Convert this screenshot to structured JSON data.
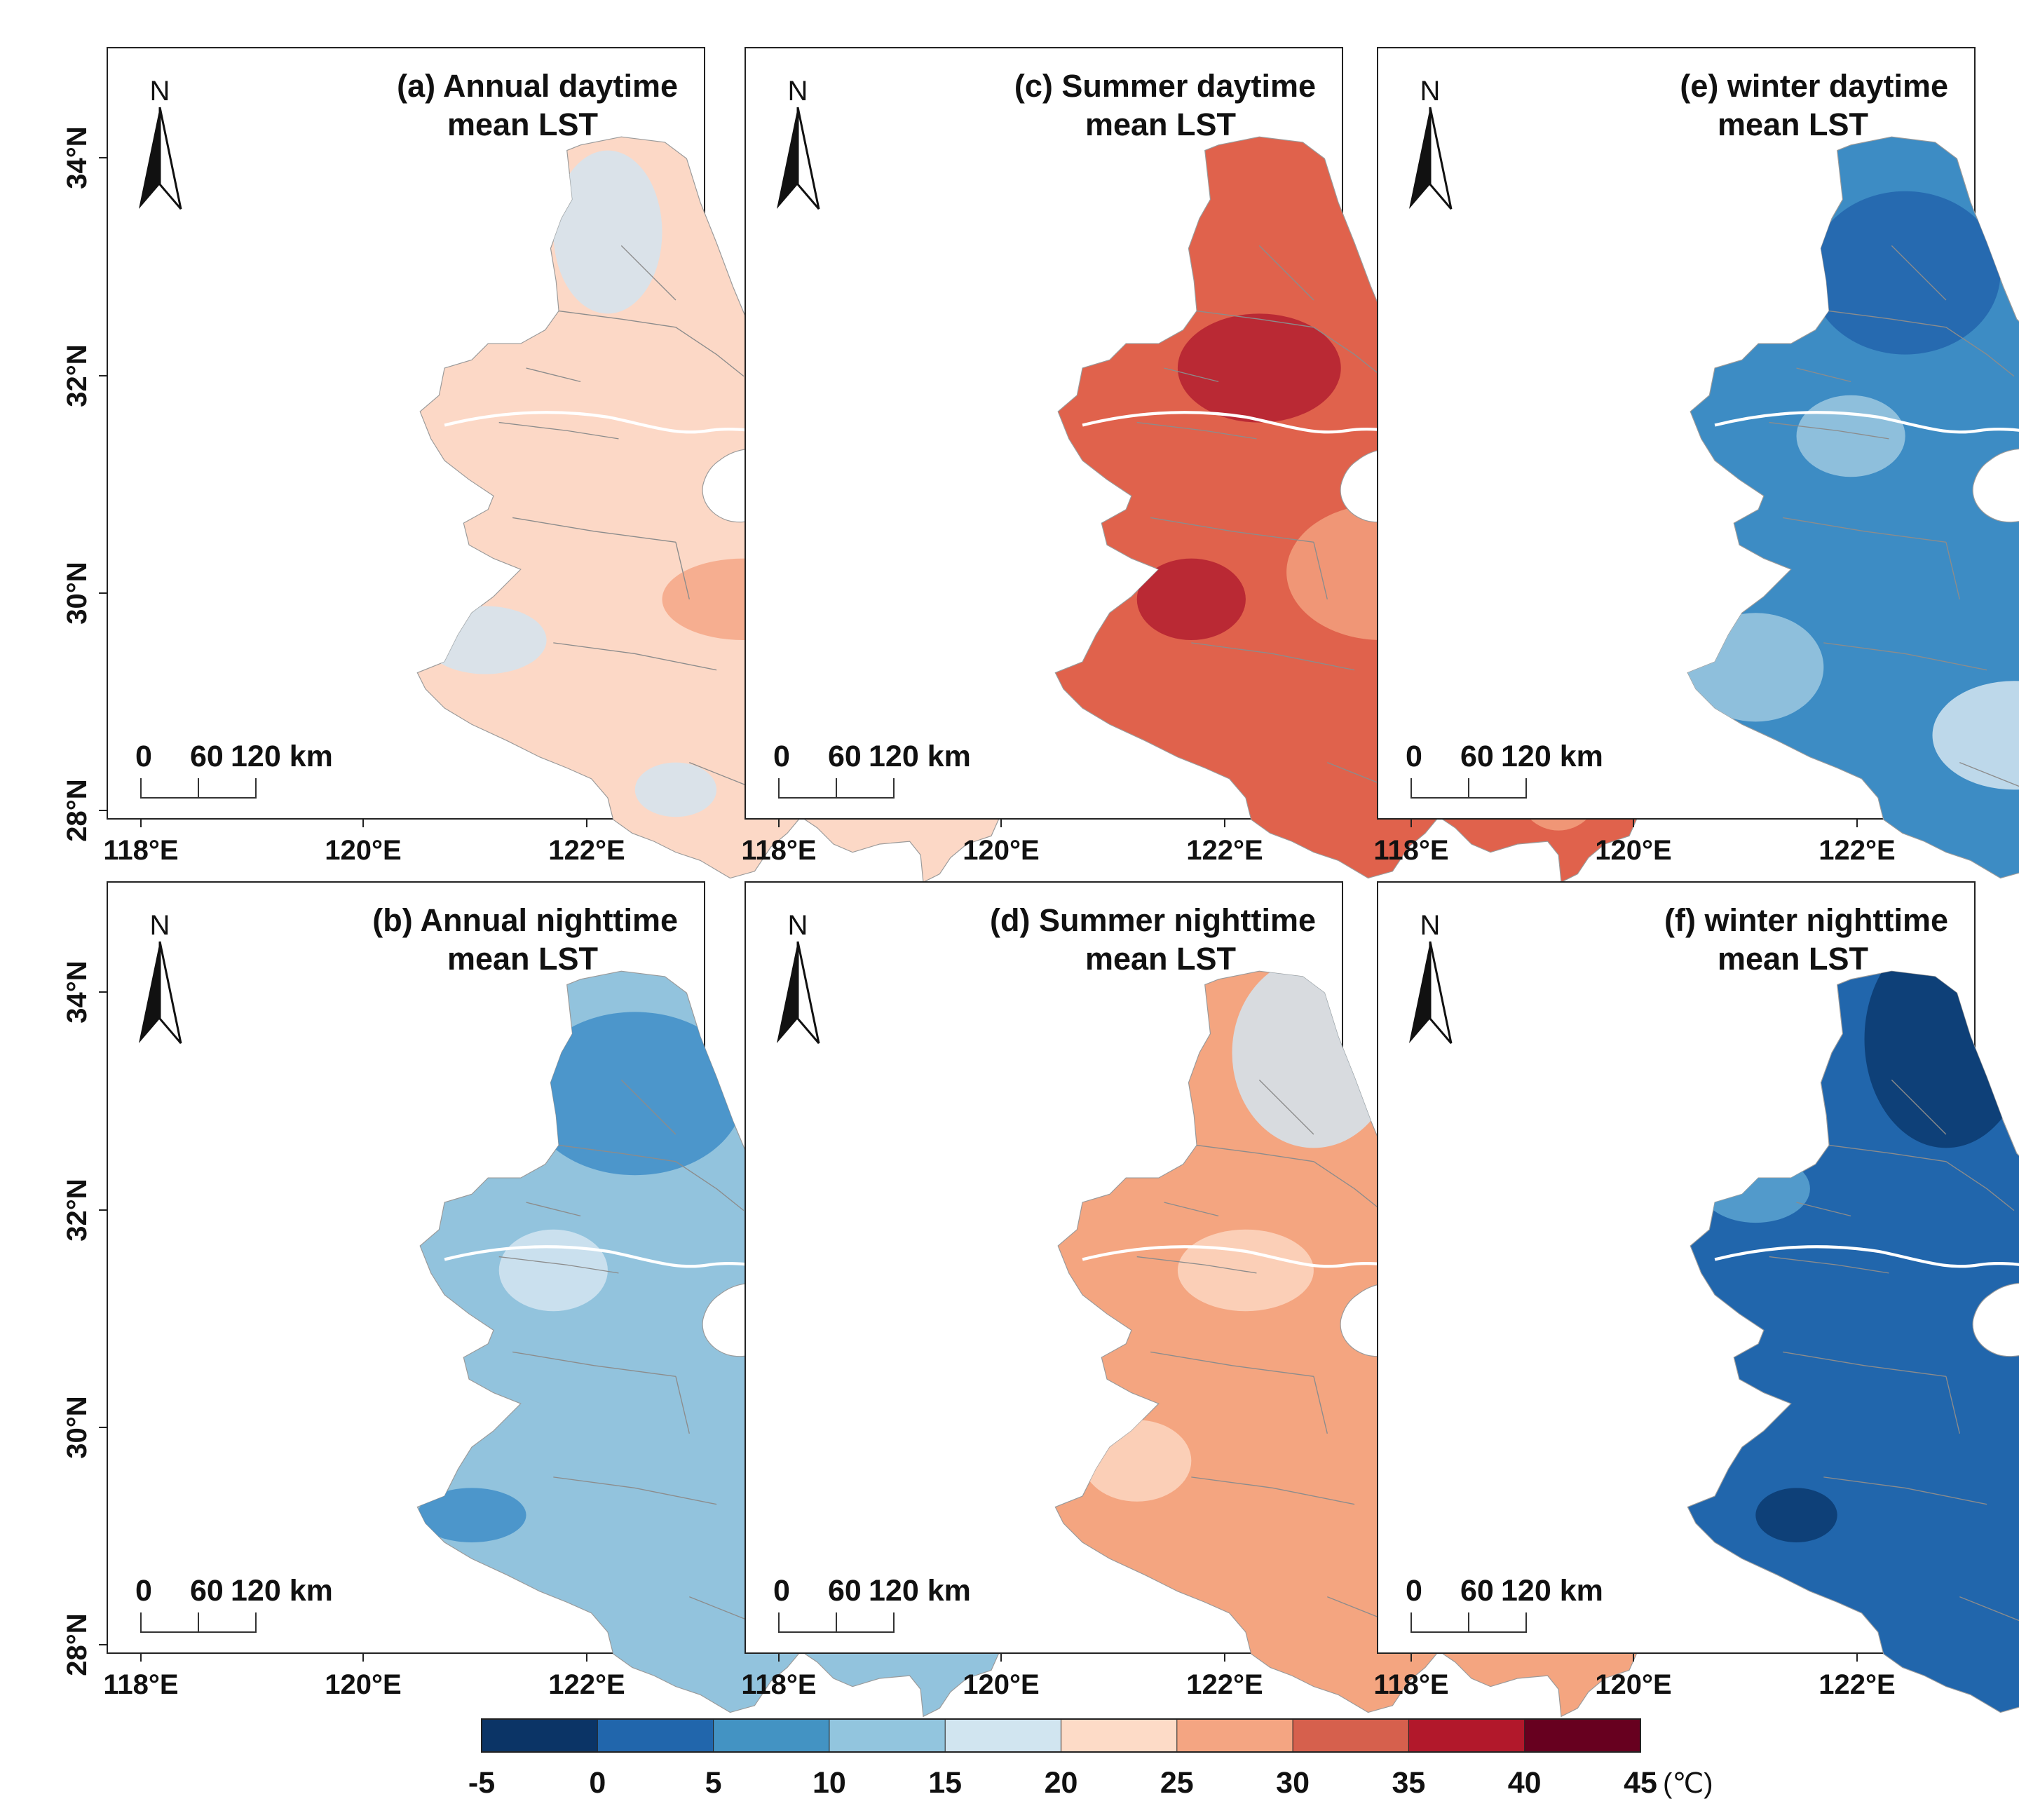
{
  "figure": {
    "lat_labels": [
      "34°N",
      "32°N",
      "30°N",
      "28°N"
    ],
    "lon_labels": [
      "118°E",
      "120°E",
      "122°E"
    ],
    "north_label": "N",
    "scale_labels": [
      "0",
      "60",
      "120 km"
    ],
    "panels": [
      {
        "title_line1": "(a) Annual daytime",
        "title_line2": "mean LST",
        "base_color": "#fcd8c6",
        "patch_colors": [
          "#d3e4ef",
          "#f4a786"
        ]
      },
      {
        "title_line1": "(c) Summer daytime",
        "title_line2": "mean LST",
        "base_color": "#e0624c",
        "patch_colors": [
          "#b32030",
          "#f2a07e",
          "#8a0f22"
        ]
      },
      {
        "title_line1": "(e) winter daytime",
        "title_line2": "mean LST",
        "base_color": "#3d8cc4",
        "patch_colors": [
          "#2264ad",
          "#9cc8e0",
          "#d3e5f1"
        ]
      },
      {
        "title_line1": "(b) Annual nighttime",
        "title_line2": "mean LST",
        "base_color": "#92c3dd",
        "patch_colors": [
          "#3f8ec8",
          "#d3e5f1"
        ]
      },
      {
        "title_line1": "(d) Summer nighttime",
        "title_line2": "mean LST",
        "base_color": "#f4a580",
        "patch_colors": [
          "#d2e4f0",
          "#fcd6c1"
        ]
      },
      {
        "title_line1": "(f) winter nighttime",
        "title_line2": "mean LST",
        "base_color": "#2166ac",
        "patch_colors": [
          "#0a3a6e",
          "#5ba3d0"
        ]
      }
    ]
  },
  "legend": {
    "unit": "(℃)",
    "tick_labels": [
      "-5",
      "0",
      "5",
      "10",
      "15",
      "20",
      "25",
      "30",
      "35",
      "40",
      "45"
    ],
    "colors": [
      "#0b3466",
      "#2166ac",
      "#4393c3",
      "#92c5de",
      "#d1e5f0",
      "#fddbc7",
      "#f4a582",
      "#d6604d",
      "#b2182b",
      "#67001f"
    ]
  }
}
